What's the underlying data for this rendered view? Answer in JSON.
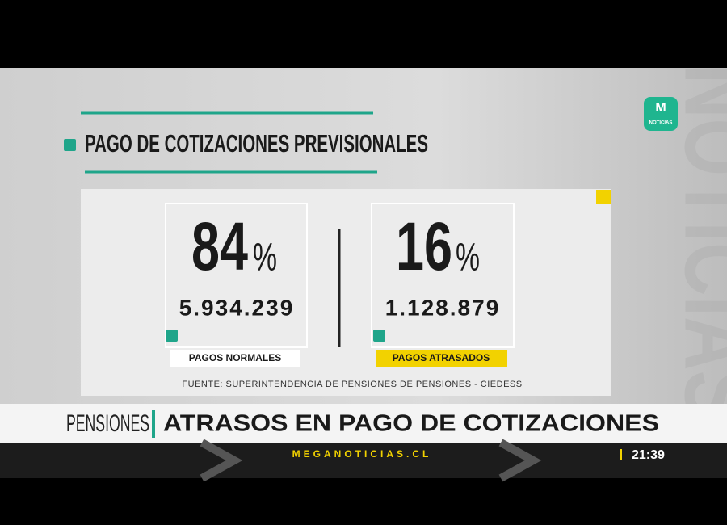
{
  "header": {
    "title": "PAGO DE COTIZACIONES PREVISIONALES"
  },
  "logo": {
    "label": "NOTICIAS"
  },
  "background": {
    "watermark": "NOTICIAS"
  },
  "stats": [
    {
      "percent": "84",
      "unit": "%",
      "count": "5.934.239",
      "label": "PAGOS NORMALES"
    },
    {
      "percent": "16",
      "unit": "%",
      "count": "1.128.879",
      "label": "PAGOS ATRASADOS"
    }
  ],
  "source": "FUENTE: SUPERINTENDENCIA DE PENSIONES DE PENSIONES - CIEDESS",
  "lower_third": {
    "section": "PENSIONES",
    "headline": "ATRASOS EN PAGO DE COTIZACIONES",
    "site": "MEGANOTICIAS.CL",
    "time": "21:39"
  }
}
